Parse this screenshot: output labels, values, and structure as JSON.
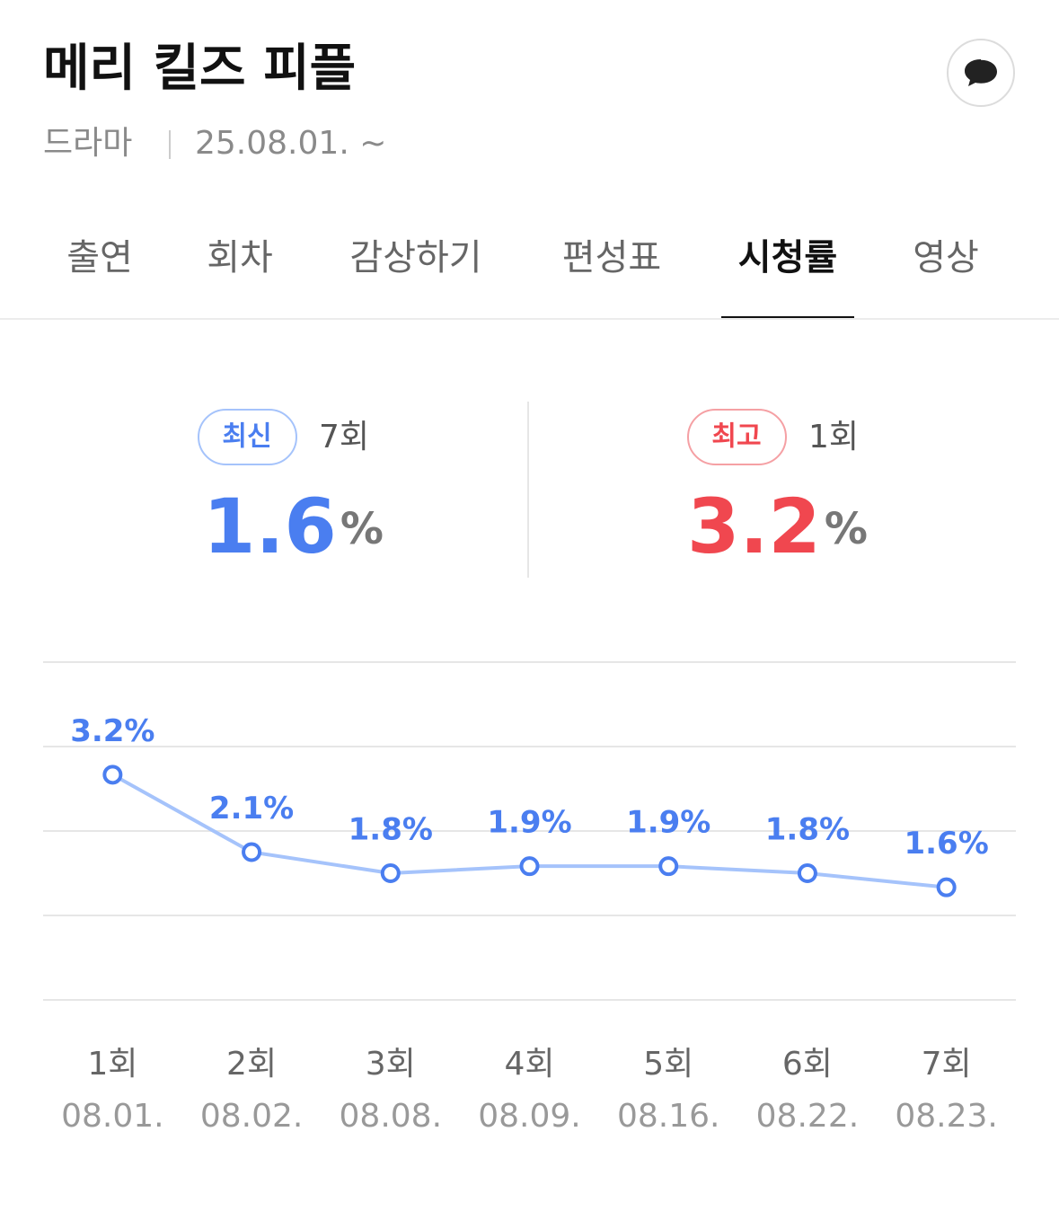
{
  "header": {
    "title": "메리 킬즈 피플",
    "genre": "드라마",
    "date": "25.08.01. ~"
  },
  "tabs": [
    "출연",
    "회차",
    "감상하기",
    "편성표",
    "시청률",
    "영상"
  ],
  "active_tab": 4,
  "summary": {
    "latest": {
      "badge": "최신",
      "episode": "7회",
      "value": 1.6,
      "unit": "%"
    },
    "best": {
      "badge": "최고",
      "episode": "1회",
      "value": 3.2,
      "unit": "%"
    }
  },
  "chart_data": {
    "type": "line",
    "categories": [
      "1회",
      "2회",
      "3회",
      "4회",
      "5회",
      "6회",
      "7회"
    ],
    "dates": [
      "08.01.",
      "08.02.",
      "08.08.",
      "08.09.",
      "08.16.",
      "08.22.",
      "08.23."
    ],
    "values": [
      3.2,
      2.1,
      1.8,
      1.9,
      1.9,
      1.8,
      1.6
    ],
    "value_labels": [
      "3.2%",
      "2.1%",
      "1.8%",
      "1.9%",
      "1.9%",
      "1.8%",
      "1.6%"
    ],
    "color": "#4a7ef0",
    "line_color": "#a5c3fb",
    "ylim": [
      0,
      4.8
    ],
    "yticks": [
      0,
      1.2,
      2.4,
      3.6,
      4.8
    ],
    "grid": true
  }
}
